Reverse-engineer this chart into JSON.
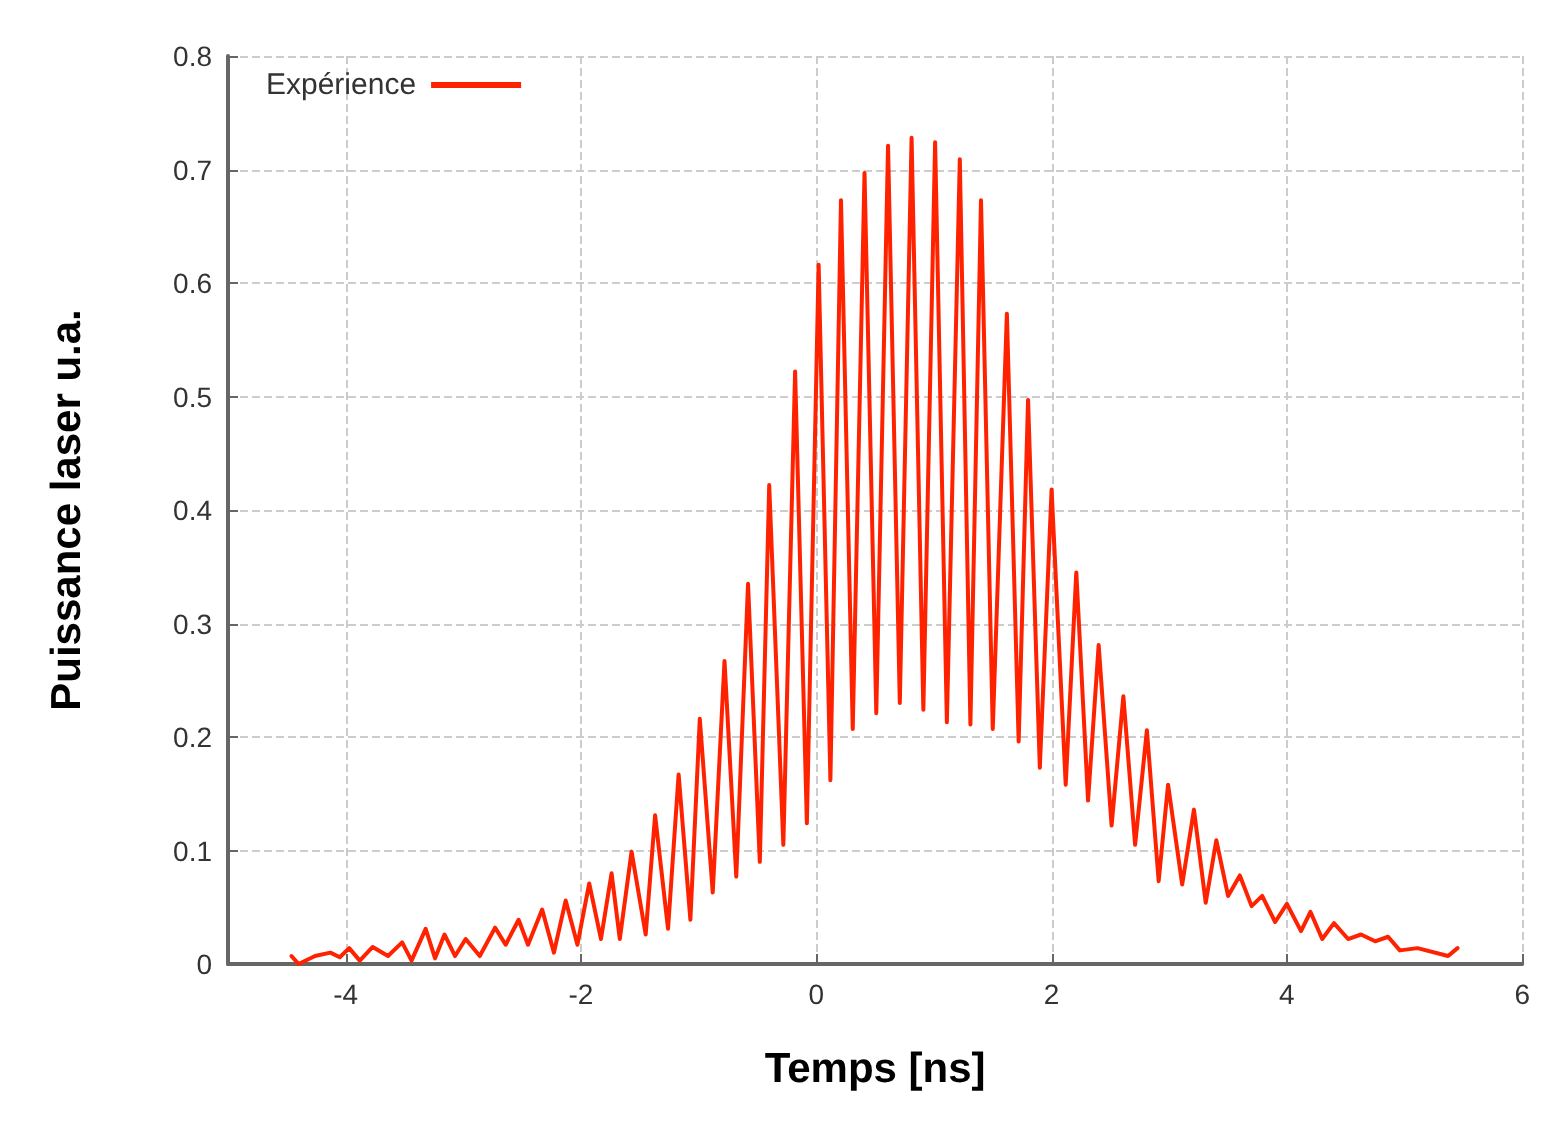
{
  "chart_data": {
    "type": "line",
    "xlabel": "Temps [ns]",
    "ylabel": "Puissance laser u.a.",
    "xlim": [
      -5,
      6
    ],
    "ylim": [
      0,
      0.8
    ],
    "xticks": [
      -4,
      -2,
      0,
      2,
      4,
      6
    ],
    "yticks": [
      0,
      0.1,
      0.2,
      0.3,
      0.4,
      0.5,
      0.6,
      0.7,
      0.8
    ],
    "grid": true,
    "legend": "top left",
    "marker": "none",
    "line_style": "solid",
    "series": [
      {
        "name": "Expérience",
        "color": "#ff2200",
        "x": [
          -4.46,
          -4.4,
          -4.26,
          -4.13,
          -4.05,
          -3.97,
          -3.88,
          -3.77,
          -3.64,
          -3.52,
          -3.44,
          -3.32,
          -3.24,
          -3.16,
          -3.07,
          -2.98,
          -2.86,
          -2.73,
          -2.64,
          -2.53,
          -2.45,
          -2.33,
          -2.23,
          -2.13,
          -2.03,
          -1.93,
          -1.83,
          -1.74,
          -1.67,
          -1.57,
          -1.45,
          -1.37,
          -1.26,
          -1.17,
          -1.07,
          -0.99,
          -0.88,
          -0.78,
          -0.68,
          -0.58,
          -0.48,
          -0.4,
          -0.28,
          -0.18,
          -0.08,
          0.02,
          0.12,
          0.21,
          0.31,
          0.41,
          0.51,
          0.61,
          0.71,
          0.81,
          0.91,
          1.01,
          1.11,
          1.22,
          1.31,
          1.4,
          1.5,
          1.62,
          1.72,
          1.8,
          1.9,
          2.0,
          2.12,
          2.21,
          2.31,
          2.4,
          2.51,
          2.61,
          2.71,
          2.81,
          2.91,
          2.99,
          3.11,
          3.21,
          3.31,
          3.4,
          3.5,
          3.6,
          3.7,
          3.79,
          3.9,
          4.0,
          4.12,
          4.2,
          4.3,
          4.4,
          4.52,
          4.63,
          4.75,
          4.86,
          4.96,
          5.11,
          5.37,
          5.45
        ],
        "values": [
          0.007,
          0.0,
          0.007,
          0.01,
          0.006,
          0.014,
          0.003,
          0.015,
          0.007,
          0.019,
          0.003,
          0.031,
          0.005,
          0.026,
          0.007,
          0.022,
          0.007,
          0.032,
          0.017,
          0.039,
          0.017,
          0.048,
          0.01,
          0.056,
          0.017,
          0.071,
          0.022,
          0.08,
          0.022,
          0.099,
          0.026,
          0.131,
          0.031,
          0.167,
          0.039,
          0.216,
          0.063,
          0.267,
          0.077,
          0.335,
          0.09,
          0.422,
          0.105,
          0.522,
          0.124,
          0.616,
          0.162,
          0.673,
          0.207,
          0.697,
          0.221,
          0.721,
          0.23,
          0.728,
          0.224,
          0.724,
          0.213,
          0.709,
          0.211,
          0.673,
          0.207,
          0.573,
          0.196,
          0.497,
          0.173,
          0.418,
          0.158,
          0.345,
          0.144,
          0.281,
          0.122,
          0.236,
          0.105,
          0.206,
          0.073,
          0.158,
          0.07,
          0.136,
          0.054,
          0.109,
          0.06,
          0.078,
          0.051,
          0.06,
          0.037,
          0.053,
          0.029,
          0.046,
          0.022,
          0.036,
          0.022,
          0.026,
          0.02,
          0.024,
          0.012,
          0.014,
          0.007,
          0.014
        ]
      }
    ]
  }
}
